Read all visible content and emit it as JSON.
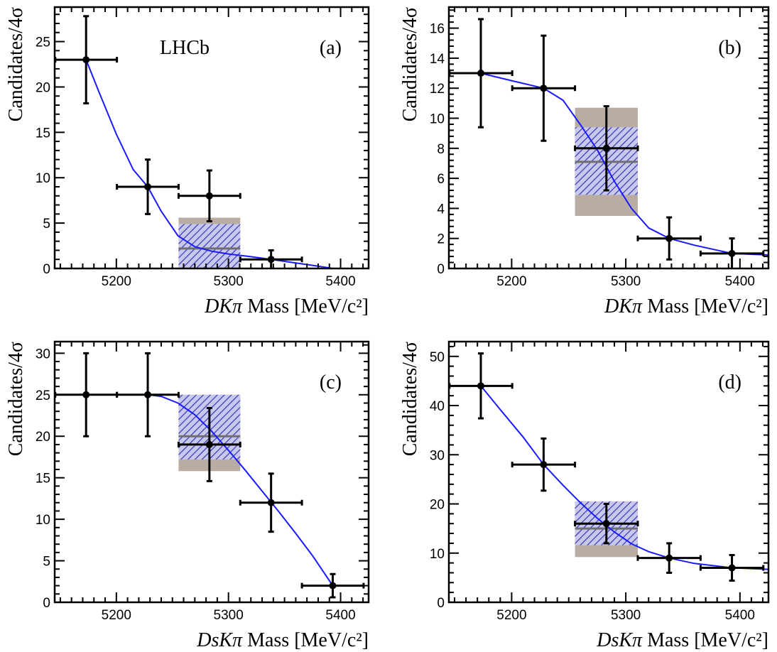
{
  "colors": {
    "fit_curve": "#1a1aff",
    "band_outer": "#b9ada3",
    "band_inner_hatch": "#2b2bb3",
    "central_line": "#707070",
    "points": "#000000"
  },
  "chart_data": [
    {
      "type": "scatter",
      "panel_label": "(a)",
      "experiment_label": "LHCb",
      "ylabel": "Candidates/4σ",
      "xlabel_prefix": "DKπ",
      "xlabel_suffix": "Mass [MeV/c²]",
      "xlim": [
        5145,
        5425
      ],
      "ylim": [
        0,
        28.8
      ],
      "xticks": [
        5200,
        5300,
        5400
      ],
      "yticks": [
        0,
        5,
        10,
        15,
        20,
        25
      ],
      "points": [
        {
          "x": 5173,
          "y": 23,
          "xerr": 27.5,
          "yerr_lo": 4.8,
          "yerr_hi": 4.8
        },
        {
          "x": 5228,
          "y": 9,
          "xerr": 27.5,
          "yerr_lo": 3.0,
          "yerr_hi": 3.0
        },
        {
          "x": 5283,
          "y": 8,
          "xerr": 27.5,
          "yerr_lo": 2.8,
          "yerr_hi": 2.8
        },
        {
          "x": 5338,
          "y": 1,
          "xerr": 27.5,
          "yerr_lo": 1.0,
          "yerr_hi": 1.0
        }
      ],
      "fit": [
        [
          5173,
          23
        ],
        [
          5185,
          19.3
        ],
        [
          5200,
          14.8
        ],
        [
          5215,
          10.9
        ],
        [
          5228,
          9
        ],
        [
          5240,
          6.3
        ],
        [
          5255,
          3.6
        ],
        [
          5270,
          2.4
        ],
        [
          5285,
          1.9
        ],
        [
          5300,
          1.6
        ],
        [
          5320,
          1.3
        ],
        [
          5338,
          1.0
        ],
        [
          5360,
          0.6
        ],
        [
          5380,
          0.25
        ],
        [
          5393,
          0.0
        ]
      ],
      "band": {
        "x0": 5255.5,
        "x1": 5310.5,
        "outer": [
          0,
          5.6
        ],
        "inner": [
          0,
          4.9
        ],
        "central": 2.2
      }
    },
    {
      "type": "scatter",
      "panel_label": "(b)",
      "experiment_label": "",
      "ylabel": "Candidates/4σ",
      "xlabel_prefix": "DKπ",
      "xlabel_suffix": "Mass [MeV/c²]",
      "xlim": [
        5145,
        5425
      ],
      "ylim": [
        0,
        17.4
      ],
      "xticks": [
        5200,
        5300,
        5400
      ],
      "yticks": [
        0,
        2,
        4,
        6,
        8,
        10,
        12,
        14,
        16
      ],
      "points": [
        {
          "x": 5173,
          "y": 13,
          "xerr": 27.5,
          "yerr_lo": 3.6,
          "yerr_hi": 3.6
        },
        {
          "x": 5228,
          "y": 12,
          "xerr": 27.5,
          "yerr_lo": 3.5,
          "yerr_hi": 3.5
        },
        {
          "x": 5283,
          "y": 8,
          "xerr": 27.5,
          "yerr_lo": 2.8,
          "yerr_hi": 2.8
        },
        {
          "x": 5338,
          "y": 2,
          "xerr": 27.5,
          "yerr_lo": 1.4,
          "yerr_hi": 1.4
        },
        {
          "x": 5393,
          "y": 1,
          "xerr": 27.5,
          "yerr_lo": 1.0,
          "yerr_hi": 1.0
        }
      ],
      "fit": [
        [
          5173,
          13
        ],
        [
          5200,
          12.5
        ],
        [
          5228,
          12
        ],
        [
          5245,
          11.2
        ],
        [
          5260,
          9.6
        ],
        [
          5275,
          7.9
        ],
        [
          5290,
          5.8
        ],
        [
          5305,
          4.0
        ],
        [
          5320,
          2.7
        ],
        [
          5338,
          2.0
        ],
        [
          5360,
          1.55
        ],
        [
          5393,
          1.0
        ],
        [
          5425,
          0.9
        ]
      ],
      "band": {
        "x0": 5255.5,
        "x1": 5310.5,
        "outer": [
          3.5,
          10.7
        ],
        "inner": [
          4.9,
          9.4
        ],
        "central": 7.1
      }
    },
    {
      "type": "scatter",
      "panel_label": "(c)",
      "experiment_label": "",
      "ylabel": "Candidates/4σ",
      "xlabel_prefix": "DsKπ",
      "xlabel_suffix": "Mass [MeV/c²]",
      "xlim": [
        5145,
        5425
      ],
      "ylim": [
        0,
        31.4
      ],
      "xticks": [
        5200,
        5300,
        5400
      ],
      "yticks": [
        0,
        5,
        10,
        15,
        20,
        25,
        30
      ],
      "points": [
        {
          "x": 5173,
          "y": 25,
          "xerr": 27.5,
          "yerr_lo": 5.0,
          "yerr_hi": 5.0
        },
        {
          "x": 5228,
          "y": 25,
          "xerr": 27.5,
          "yerr_lo": 5.0,
          "yerr_hi": 5.0
        },
        {
          "x": 5283,
          "y": 19,
          "xerr": 27.5,
          "yerr_lo": 4.4,
          "yerr_hi": 4.4
        },
        {
          "x": 5338,
          "y": 12,
          "xerr": 27.5,
          "yerr_lo": 3.5,
          "yerr_hi": 3.5
        },
        {
          "x": 5393,
          "y": 2,
          "xerr": 27.5,
          "yerr_lo": 1.4,
          "yerr_hi": 1.4
        }
      ],
      "fit": [
        [
          5228,
          25
        ],
        [
          5240,
          24.8
        ],
        [
          5255,
          24.0
        ],
        [
          5270,
          22.6
        ],
        [
          5285,
          20.6
        ],
        [
          5300,
          18.3
        ],
        [
          5315,
          15.9
        ],
        [
          5330,
          13.4
        ],
        [
          5345,
          10.9
        ],
        [
          5360,
          8.3
        ],
        [
          5375,
          5.6
        ],
        [
          5393,
          2.0
        ]
      ],
      "band": {
        "x0": 5255.5,
        "x1": 5310.5,
        "outer": [
          15.8,
          25.0
        ],
        "inner": [
          17.2,
          25.0
        ],
        "central": 20.0
      }
    },
    {
      "type": "scatter",
      "panel_label": "(d)",
      "experiment_label": "",
      "ylabel": "Candidates/4σ",
      "xlabel_prefix": "DsKπ",
      "xlabel_suffix": "Mass [MeV/c²]",
      "xlim": [
        5145,
        5425
      ],
      "ylim": [
        0,
        53
      ],
      "xticks": [
        5200,
        5300,
        5400
      ],
      "yticks": [
        0,
        10,
        20,
        30,
        40,
        50
      ],
      "points": [
        {
          "x": 5173,
          "y": 44,
          "xerr": 27.5,
          "yerr_lo": 6.6,
          "yerr_hi": 6.6
        },
        {
          "x": 5228,
          "y": 28,
          "xerr": 27.5,
          "yerr_lo": 5.3,
          "yerr_hi": 5.3
        },
        {
          "x": 5283,
          "y": 16,
          "xerr": 27.5,
          "yerr_lo": 4.0,
          "yerr_hi": 4.0
        },
        {
          "x": 5338,
          "y": 9,
          "xerr": 27.5,
          "yerr_lo": 3.0,
          "yerr_hi": 3.0
        },
        {
          "x": 5393,
          "y": 7,
          "xerr": 27.5,
          "yerr_lo": 2.6,
          "yerr_hi": 2.6
        }
      ],
      "fit": [
        [
          5173,
          44
        ],
        [
          5190,
          39.2
        ],
        [
          5210,
          33.6
        ],
        [
          5228,
          28
        ],
        [
          5245,
          23.8
        ],
        [
          5260,
          20.3
        ],
        [
          5275,
          17.1
        ],
        [
          5290,
          14.3
        ],
        [
          5305,
          11.9
        ],
        [
          5320,
          10.3
        ],
        [
          5338,
          9.0
        ],
        [
          5360,
          7.9
        ],
        [
          5393,
          7.0
        ],
        [
          5425,
          6.7
        ]
      ],
      "band": {
        "x0": 5255.5,
        "x1": 5310.5,
        "outer": [
          9.2,
          20.5
        ],
        "inner": [
          11.6,
          20.5
        ],
        "central": 15.0
      }
    }
  ]
}
